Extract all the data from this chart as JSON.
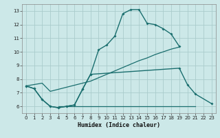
{
  "xlabel": "Humidex (Indice chaleur)",
  "background_color": "#cce8e8",
  "grid_color": "#aacccc",
  "line_color": "#1a6e6e",
  "xlim": [
    -0.5,
    23.5
  ],
  "ylim": [
    5.5,
    13.5
  ],
  "xticks": [
    0,
    1,
    2,
    3,
    4,
    5,
    6,
    7,
    8,
    9,
    10,
    11,
    12,
    13,
    14,
    15,
    16,
    17,
    18,
    19,
    20,
    21,
    22,
    23
  ],
  "yticks": [
    6,
    7,
    8,
    9,
    10,
    11,
    12,
    13
  ],
  "line1_x": [
    0,
    1,
    2,
    3,
    4,
    5,
    6,
    7,
    8,
    9,
    10,
    11,
    12,
    13,
    14,
    15,
    16,
    17,
    18,
    19
  ],
  "line1_y": [
    7.5,
    7.3,
    6.5,
    6.0,
    5.9,
    6.0,
    6.1,
    7.25,
    8.35,
    10.15,
    10.5,
    11.15,
    12.8,
    13.1,
    13.1,
    12.1,
    12.0,
    11.7,
    11.3,
    10.4
  ],
  "line2_x": [
    0,
    1,
    2,
    3,
    4,
    5,
    6,
    7,
    8,
    19,
    20,
    21,
    23
  ],
  "line2_y": [
    7.5,
    7.3,
    6.5,
    6.0,
    5.9,
    6.0,
    6.1,
    7.25,
    8.35,
    8.8,
    7.6,
    6.9,
    6.2
  ],
  "line3_x": [
    0,
    1,
    2,
    3,
    4,
    5,
    6,
    7,
    8,
    9,
    10,
    11,
    12,
    13,
    14,
    15,
    16,
    17,
    18,
    19
  ],
  "line3_y": [
    7.5,
    7.6,
    7.7,
    7.1,
    7.25,
    7.4,
    7.55,
    7.7,
    7.85,
    8.1,
    8.35,
    8.6,
    8.85,
    9.1,
    9.35,
    9.55,
    9.8,
    10.0,
    10.2,
    10.35
  ],
  "line4_x": [
    4,
    21
  ],
  "line4_y": [
    6.0,
    6.0
  ]
}
